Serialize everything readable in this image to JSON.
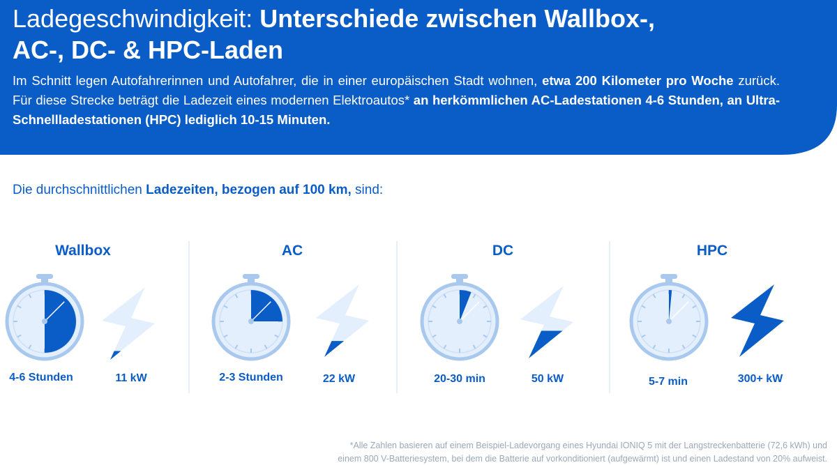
{
  "header": {
    "title_regular": "Ladegeschwindigkeit: ",
    "title_bold_1": "Unterschiede zwischen Wallbox-,",
    "title_bold_2": "AC-, DC- & HPC-Laden",
    "intro_1": "Im Schnitt legen Autofahrerinnen und Autofahrer, die in einer europäischen Stadt wohnen, ",
    "intro_2": "etwa 200 Kilometer pro Woche",
    "intro_3": " zurück. Für diese Strecke beträgt die Ladezeit eines modernen Elektroautos* ",
    "intro_4": "an herkömmlichen AC-Ladestationen 4-6 Stunden, an Ultra-Schnellladestationen (HPC) lediglich 10-15 Minuten."
  },
  "subtitle": {
    "part_1": "Die durchschnittlichen ",
    "part_2": "Ladezeiten, bezogen auf 100 km,",
    "part_3": " sind:"
  },
  "columns": [
    {
      "name": "Wallbox",
      "time": "4-6 Stunden",
      "power": "11 kW",
      "dial_fraction": 0.5,
      "bolt_fill": 0.12
    },
    {
      "name": "AC",
      "time": "2-3 Stunden",
      "power": "22 kW",
      "dial_fraction": 0.25,
      "bolt_fill": 0.22
    },
    {
      "name": "DC",
      "time": "20-30 min",
      "power": "50 kW",
      "dial_fraction": 0.06,
      "bolt_fill": 0.38
    },
    {
      "name": "HPC",
      "time": "5-7 min",
      "power": "300+ kW",
      "dial_fraction": 0.015,
      "bolt_fill": 1.0
    }
  ],
  "footnote": {
    "line_1": "*Alle Zahlen basieren auf einem Beispiel-Ladevorgang eines Hyundai IONIQ 5 mit der Langstreckenbatterie (72,6 kWh) und",
    "line_2": "einem 800 V-Batteriesystem, bei dem die Batterie auf vorkonditioniert (aufgewärmt) ist und einen Ladestand von 20% aufweist."
  },
  "colors": {
    "brand_blue": "#0a5cc6",
    "light_blue": "#e3effc",
    "outline_blue": "#a9c8ee"
  }
}
